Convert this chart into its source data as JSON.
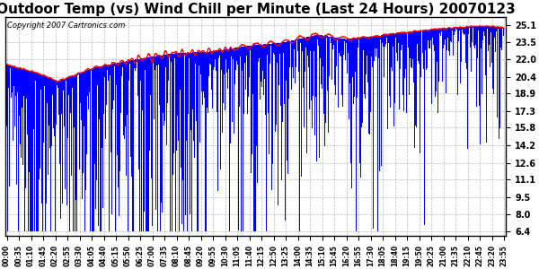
{
  "title": "Outdoor Temp (vs) Wind Chill per Minute (Last 24 Hours) 20070123",
  "copyright_text": "Copyright 2007 Cartronics.com",
  "yticks": [
    6.4,
    8.0,
    9.5,
    11.1,
    12.6,
    14.2,
    15.8,
    17.3,
    18.9,
    20.4,
    22.0,
    23.5,
    25.1
  ],
  "ylim": [
    6.0,
    25.8
  ],
  "xtick_labels": [
    "00:00",
    "00:35",
    "01:10",
    "01:45",
    "02:20",
    "02:55",
    "03:30",
    "04:05",
    "04:40",
    "05:15",
    "05:50",
    "06:25",
    "07:00",
    "07:35",
    "08:10",
    "08:45",
    "09:20",
    "09:55",
    "10:30",
    "11:05",
    "11:40",
    "12:15",
    "12:50",
    "13:25",
    "14:00",
    "14:35",
    "15:10",
    "15:45",
    "16:20",
    "16:55",
    "17:30",
    "18:05",
    "18:40",
    "19:15",
    "19:50",
    "20:25",
    "21:00",
    "21:35",
    "22:10",
    "22:45",
    "23:20",
    "23:55"
  ],
  "background_color": "#ffffff",
  "plot_bg_color": "#ffffff",
  "grid_color": "#aaaaaa",
  "bar_color": "#0000ff",
  "line_color": "#ff0000",
  "title_fontsize": 11,
  "copyright_fontsize": 6,
  "num_minutes": 1440
}
